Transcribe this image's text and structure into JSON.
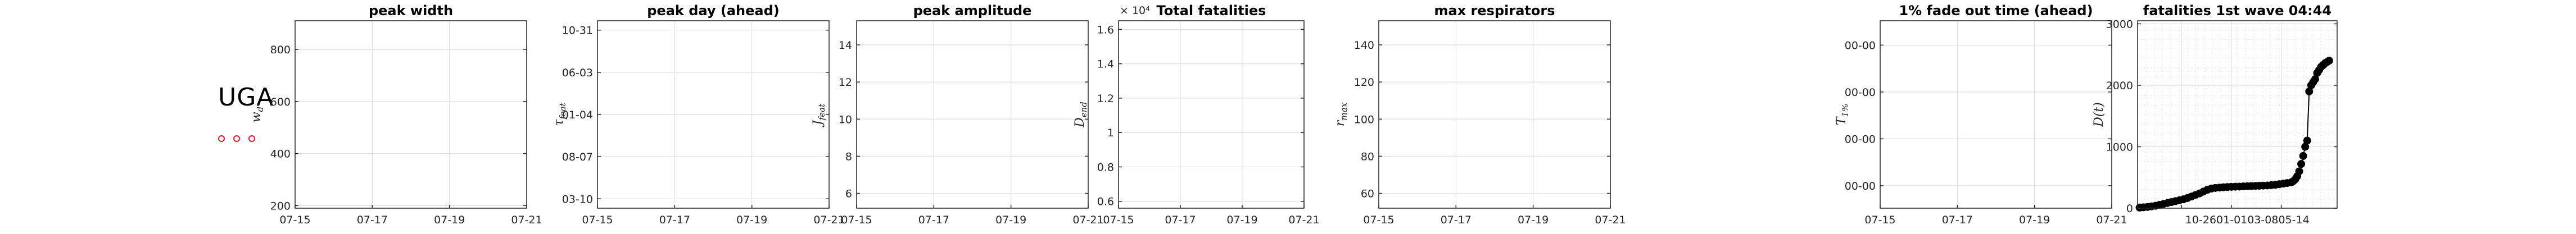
{
  "country": "UGA",
  "legend_marker_color": "#e8192c",
  "chart_data": [
    {
      "type": "line",
      "title": "peak width",
      "ylabel": "w_d",
      "ylabel_parts": {
        "base": "w",
        "sub": "d"
      },
      "ylim": [
        190,
        910
      ],
      "yticks": [
        200,
        400,
        600,
        800
      ],
      "ytick_labels": [
        "200",
        "400",
        "600",
        "800"
      ],
      "xticks": [
        "07-15",
        "07-17",
        "07-19",
        "07-21"
      ],
      "grid": true,
      "series": []
    },
    {
      "type": "line",
      "title": "peak day (ahead)",
      "ylabel": "τ_feat",
      "ylabel_parts": {
        "base": "τ",
        "sub": "feat"
      },
      "ylim": [
        0,
        1
      ],
      "yticks": [
        0.05,
        0.275,
        0.5,
        0.725,
        0.95
      ],
      "ytick_labels": [
        "03-10",
        "08-07",
        "01-04",
        "06-03",
        "10-31"
      ],
      "xticks": [
        "07-15",
        "07-17",
        "07-19",
        "07-21"
      ],
      "grid": true,
      "series": []
    },
    {
      "type": "line",
      "title": "peak amplitude",
      "ylabel": "J_feat",
      "ylabel_parts": {
        "base": "J",
        "sub": "feat"
      },
      "ylim": [
        5.2,
        15.3
      ],
      "yticks": [
        6,
        8,
        10,
        12,
        14
      ],
      "ytick_labels": [
        "6",
        "8",
        "10",
        "12",
        "14"
      ],
      "xticks": [
        "07-15",
        "07-17",
        "07-19",
        "07-21"
      ],
      "grid": true,
      "series": []
    },
    {
      "type": "line",
      "title": "Total fatalities",
      "exponent": "× 10⁴",
      "ylabel": "D_end",
      "ylabel_parts": {
        "base": "D",
        "sub": "end"
      },
      "ylim": [
        0.56,
        1.65
      ],
      "yticks": [
        0.6,
        0.8,
        1,
        1.2,
        1.4,
        1.6
      ],
      "ytick_labels": [
        "0.6",
        "0.8",
        "1",
        "1.2",
        "1.4",
        "1.6"
      ],
      "xticks": [
        "07-15",
        "07-17",
        "07-19",
        "07-21"
      ],
      "grid": true,
      "series": []
    },
    {
      "type": "line",
      "title": "max respirators",
      "ylabel": "r_max",
      "ylabel_parts": {
        "base": "r",
        "sub": "max"
      },
      "ylim": [
        52,
        153
      ],
      "yticks": [
        60,
        80,
        100,
        120,
        140
      ],
      "ytick_labels": [
        "60",
        "80",
        "100",
        "120",
        "140"
      ],
      "xticks": [
        "07-15",
        "07-17",
        "07-19",
        "07-21"
      ],
      "grid": true,
      "series": []
    },
    {
      "type": "line",
      "title": "1% fade out time (ahead)",
      "ylabel": "T_1%",
      "ylabel_parts": {
        "base": "T",
        "sub": "1%"
      },
      "ylim": [
        0,
        1
      ],
      "yticks": [
        0.12,
        0.37,
        0.62,
        0.87
      ],
      "ytick_labels": [
        "00-00",
        "00-00",
        "00-00",
        "00-00"
      ],
      "xticks": [
        "07-15",
        "07-17",
        "07-19",
        "07-21"
      ],
      "grid": true,
      "series": []
    },
    {
      "type": "scatter",
      "title": "fatalities 1st wave 04:44",
      "ylabel": "D(t)",
      "ylabel_parts": {
        "base": "D(t)",
        "sub": ""
      },
      "xlim": [
        0,
        100
      ],
      "ylim": [
        0,
        3050
      ],
      "yticks": [
        0,
        1000,
        2000,
        3000
      ],
      "ytick_labels": [
        "0",
        "1000",
        "2000",
        "3000"
      ],
      "xticks_pos": [
        22,
        47,
        72
      ],
      "xtick_text": "10-2601-0103-0805-14",
      "grid": true,
      "series": [
        {
          "x": [
            1,
            3,
            5,
            7,
            9,
            11,
            13,
            15,
            17,
            19,
            21,
            23,
            25,
            27,
            29,
            31,
            33,
            35,
            37,
            39,
            41,
            43,
            45,
            47,
            49,
            51,
            53,
            55,
            57,
            59,
            61,
            63,
            65,
            67,
            69,
            71,
            73,
            75,
            77,
            78,
            79,
            80,
            81,
            82,
            83,
            84,
            85,
            86,
            87,
            88,
            89,
            90,
            91,
            92,
            93,
            94,
            95,
            96
          ],
          "y": [
            10,
            15,
            20,
            30,
            40,
            55,
            70,
            85,
            100,
            115,
            130,
            145,
            165,
            190,
            215,
            240,
            270,
            300,
            320,
            330,
            335,
            340,
            345,
            348,
            350,
            352,
            355,
            357,
            360,
            362,
            365,
            368,
            370,
            375,
            380,
            390,
            400,
            410,
            420,
            440,
            470,
            520,
            600,
            720,
            850,
            1000,
            1100,
            1900,
            2000,
            2050,
            2100,
            2200,
            2250,
            2300,
            2330,
            2360,
            2380,
            2400
          ]
        }
      ]
    }
  ]
}
